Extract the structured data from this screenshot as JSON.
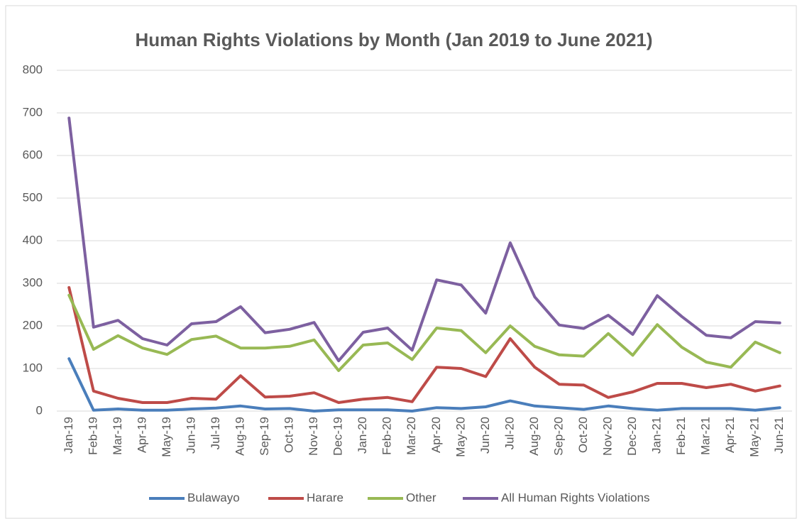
{
  "chart_data": {
    "type": "line",
    "title": "Human Rights Violations by Month (Jan 2019 to June 2021)",
    "categories": [
      "Jan-19",
      "Feb-19",
      "Mar-19",
      "Apr-19",
      "May-19",
      "Jun-19",
      "Jul-19",
      "Aug-19",
      "Sep-19",
      "Oct-19",
      "Nov-19",
      "Dec-19",
      "Jan-20",
      "Feb-20",
      "Mar-20",
      "Apr-20",
      "May-20",
      "Jun-20",
      "Jul-20",
      "Aug-20",
      "Sep-20",
      "Oct-20",
      "Nov-20",
      "Dec-20",
      "Jan-21",
      "Feb-21",
      "Mar-21",
      "Apr-21",
      "May-21",
      "Jun-21"
    ],
    "series": [
      {
        "name": "Bulawayo",
        "color": "#4a7ebb",
        "values": [
          123,
          2,
          5,
          2,
          2,
          5,
          7,
          12,
          5,
          6,
          0,
          3,
          3,
          3,
          0,
          8,
          6,
          10,
          24,
          12,
          8,
          4,
          12,
          6,
          2,
          6,
          6,
          6,
          2,
          8
        ]
      },
      {
        "name": "Harare",
        "color": "#be4b48",
        "values": [
          290,
          47,
          30,
          20,
          20,
          30,
          28,
          83,
          33,
          35,
          43,
          20,
          28,
          32,
          22,
          103,
          100,
          81,
          170,
          103,
          63,
          61,
          32,
          45,
          65,
          65,
          55,
          63,
          47,
          59
        ]
      },
      {
        "name": "Other",
        "color": "#98b954",
        "values": [
          272,
          145,
          177,
          148,
          133,
          168,
          176,
          148,
          148,
          152,
          167,
          95,
          155,
          160,
          121,
          195,
          189,
          137,
          200,
          152,
          132,
          129,
          182,
          131,
          203,
          150,
          115,
          103,
          162,
          137
        ]
      },
      {
        "name": "All Human Rights Violations",
        "color": "#7d60a0",
        "values": [
          688,
          197,
          213,
          170,
          155,
          205,
          210,
          245,
          184,
          192,
          208,
          118,
          185,
          195,
          143,
          308,
          296,
          230,
          395,
          268,
          202,
          194,
          225,
          180,
          271,
          222,
          178,
          172,
          210,
          207
        ]
      }
    ],
    "ylim": [
      0,
      800
    ],
    "yticks": [
      0,
      100,
      200,
      300,
      400,
      500,
      600,
      700,
      800
    ],
    "grid": true
  }
}
